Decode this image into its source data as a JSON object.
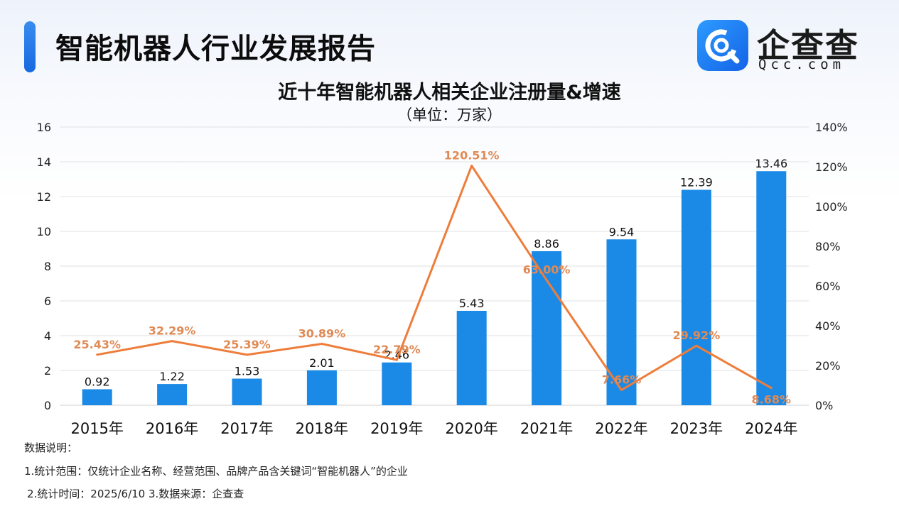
{
  "header": {
    "title": "智能机器人行业发展报告",
    "logo_name": "企查查",
    "logo_domain": "Qcc.com"
  },
  "colors": {
    "bar": "#1a8ae6",
    "line": "#ee7d3b",
    "label_orange": "#e08a55",
    "accent": "#1a6fe6"
  },
  "chart_data": {
    "type": "bar",
    "title": "近十年智能机器人相关企业注册量&增速",
    "subtitle": "（单位：万家）",
    "categories": [
      "2015年",
      "2016年",
      "2017年",
      "2018年",
      "2019年",
      "2020年",
      "2021年",
      "2022年",
      "2023年",
      "2024年"
    ],
    "series": [
      {
        "type": "bar",
        "values": [
          0.92,
          1.22,
          1.53,
          2.01,
          2.46,
          5.43,
          8.86,
          9.54,
          12.39,
          13.46
        ],
        "labels": [
          "0.92",
          "1.22",
          "1.53",
          "2.01",
          "2.46",
          "5.43",
          "8.86",
          "9.54",
          "12.39",
          "13.46"
        ],
        "axis": "left"
      },
      {
        "type": "line",
        "values": [
          25.43,
          32.29,
          25.39,
          30.89,
          22.79,
          120.51,
          63.0,
          7.66,
          29.92,
          8.68
        ],
        "labels": [
          "25.43%",
          "32.29%",
          "25.39%",
          "30.89%",
          "22.79%",
          "120.51%",
          "63.00%",
          "7.66%",
          "29.92%",
          "8.68%"
        ],
        "axis": "right"
      }
    ],
    "y_left": {
      "min": 0,
      "max": 16,
      "ticks": [
        "0",
        "2",
        "4",
        "6",
        "8",
        "10",
        "12",
        "14",
        "16"
      ]
    },
    "y_right": {
      "min": 0,
      "max": 140,
      "ticks": [
        "0%",
        "20%",
        "40%",
        "60%",
        "80%",
        "100%",
        "120%",
        "140%"
      ]
    },
    "grid": true,
    "legend": "none"
  },
  "notes": {
    "heading": "数据说明：",
    "line1": "1.统计范围：仅统计企业名称、经营范围、品牌产品含关键词“智能机器人”的企业",
    "line2": "2.统计时间：2025/6/10 3.数据来源：企查查"
  }
}
